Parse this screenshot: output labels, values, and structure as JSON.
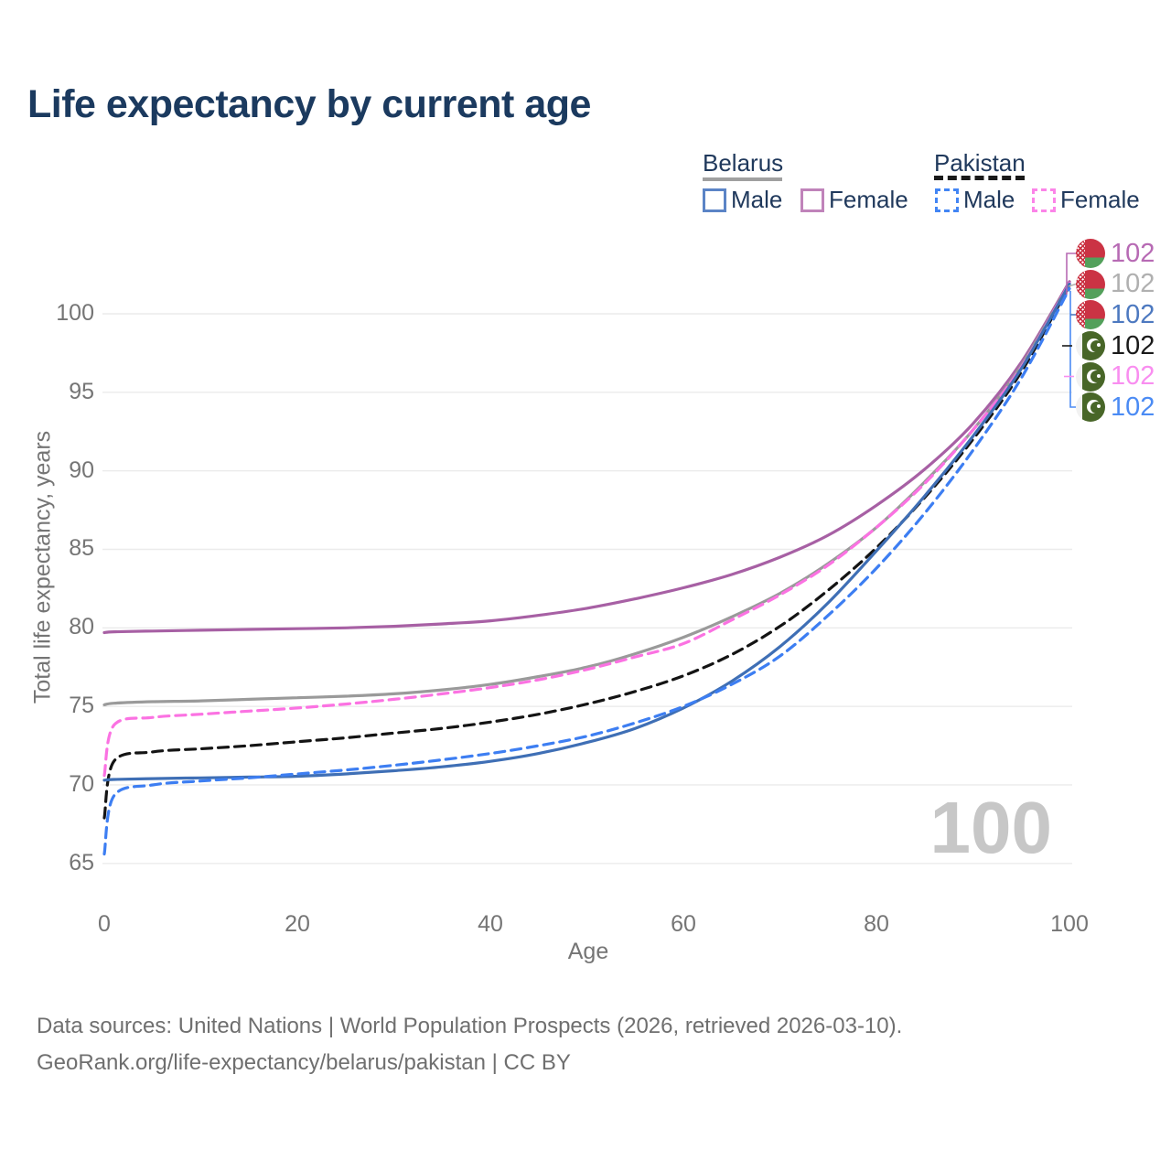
{
  "title": "Life expectancy by current age",
  "legend": {
    "belarus": {
      "label": "Belarus",
      "male_label": "Male",
      "female_label": "Female"
    },
    "pakistan": {
      "label": "Pakistan",
      "male_label": "Male",
      "female_label": "Female"
    }
  },
  "colors": {
    "title_text": "#1b3a5f",
    "axis_text": "#757575",
    "gridline": "#ebebeb",
    "watermark": "#c7c7c7",
    "belarus_male": "#3f6fb5",
    "belarus_female": "#a760a4",
    "belarus_both": "#9a9a9a",
    "pakistan_male": "#3d7ef2",
    "pakistan_female": "#fb72e2",
    "pakistan_both": "#141414"
  },
  "chart_data": {
    "type": "line",
    "title": "Life expectancy by current age",
    "xlabel": "Age",
    "ylabel": "Total life expectancy, years",
    "xlim": [
      0,
      100
    ],
    "ylim": [
      65,
      103
    ],
    "x_ticks": [
      0,
      20,
      40,
      60,
      80,
      100
    ],
    "y_ticks": [
      65,
      70,
      75,
      80,
      85,
      90,
      95,
      100
    ],
    "grid": "horizontal",
    "legend_position": "top-right",
    "x": [
      0,
      1,
      5,
      10,
      15,
      20,
      25,
      30,
      35,
      40,
      45,
      50,
      55,
      60,
      65,
      70,
      75,
      80,
      85,
      90,
      95,
      100
    ],
    "series": [
      {
        "name": "Belarus Female",
        "style": "solid",
        "color": "#a760a4",
        "values": [
          79.7,
          79.75,
          79.8,
          79.85,
          79.9,
          79.95,
          80.0,
          80.1,
          80.25,
          80.45,
          80.8,
          81.25,
          81.85,
          82.55,
          83.4,
          84.5,
          85.9,
          87.8,
          90.1,
          93.0,
          96.9,
          102.05
        ]
      },
      {
        "name": "Belarus Both sexes",
        "style": "solid",
        "color": "#9a9a9a",
        "values": [
          75.1,
          75.2,
          75.3,
          75.35,
          75.45,
          75.55,
          75.65,
          75.8,
          76.05,
          76.4,
          76.9,
          77.5,
          78.35,
          79.4,
          80.7,
          82.2,
          84.1,
          86.4,
          89.3,
          92.6,
          96.7,
          101.95
        ]
      },
      {
        "name": "Pakistan Female",
        "style": "dashed",
        "color": "#fb72e2",
        "values": [
          70.6,
          73.8,
          74.3,
          74.5,
          74.7,
          74.9,
          75.15,
          75.45,
          75.8,
          76.2,
          76.7,
          77.35,
          78.15,
          79.0,
          80.5,
          82.1,
          84.0,
          86.4,
          89.2,
          92.6,
          96.6,
          101.95
        ]
      },
      {
        "name": "Pakistan Both sexes",
        "style": "dashed",
        "color": "#141414",
        "values": [
          67.9,
          71.5,
          72.1,
          72.3,
          72.5,
          72.75,
          73.0,
          73.3,
          73.6,
          74.0,
          74.5,
          75.15,
          75.95,
          76.95,
          78.3,
          80.1,
          82.4,
          85.1,
          88.3,
          92.0,
          96.3,
          101.8
        ]
      },
      {
        "name": "Belarus Male",
        "style": "solid",
        "color": "#3f6fb5",
        "values": [
          70.3,
          70.35,
          70.4,
          70.45,
          70.5,
          70.55,
          70.7,
          70.9,
          71.15,
          71.5,
          72.0,
          72.7,
          73.6,
          74.9,
          76.6,
          78.8,
          81.6,
          84.9,
          88.4,
          92.2,
          96.5,
          101.9
        ]
      },
      {
        "name": "Pakistan Male",
        "style": "dashed",
        "color": "#3d7ef2",
        "values": [
          65.6,
          69.3,
          70.0,
          70.25,
          70.45,
          70.7,
          70.95,
          71.25,
          71.6,
          72.0,
          72.5,
          73.1,
          73.95,
          75.0,
          76.4,
          78.2,
          80.8,
          83.8,
          87.3,
          91.3,
          95.9,
          101.6
        ]
      }
    ],
    "watermark_age": "100"
  },
  "endpoint_labels": [
    {
      "country": "belarus",
      "series": "Belarus Female",
      "value": "102",
      "color": "#b76ab4"
    },
    {
      "country": "belarus",
      "series": "Belarus Both sexes",
      "value": "102",
      "color": "#b0b0b0"
    },
    {
      "country": "belarus",
      "series": "Belarus Male",
      "value": "102",
      "color": "#4d79c0"
    },
    {
      "country": "pakistan",
      "series": "Pakistan Both sexes",
      "value": "102",
      "color": "#1a1a1a"
    },
    {
      "country": "pakistan",
      "series": "Pakistan Female",
      "value": "102",
      "color": "#f98ef0"
    },
    {
      "country": "pakistan",
      "series": "Pakistan Male",
      "value": "102",
      "color": "#4b8bf4"
    }
  ],
  "watermark": "100",
  "footer": {
    "line1": "Data sources: United Nations | World Population Prospects (2026, retrieved 2026-03-10).",
    "line2": "GeoRank.org/life-expectancy/belarus/pakistan | CC BY"
  }
}
